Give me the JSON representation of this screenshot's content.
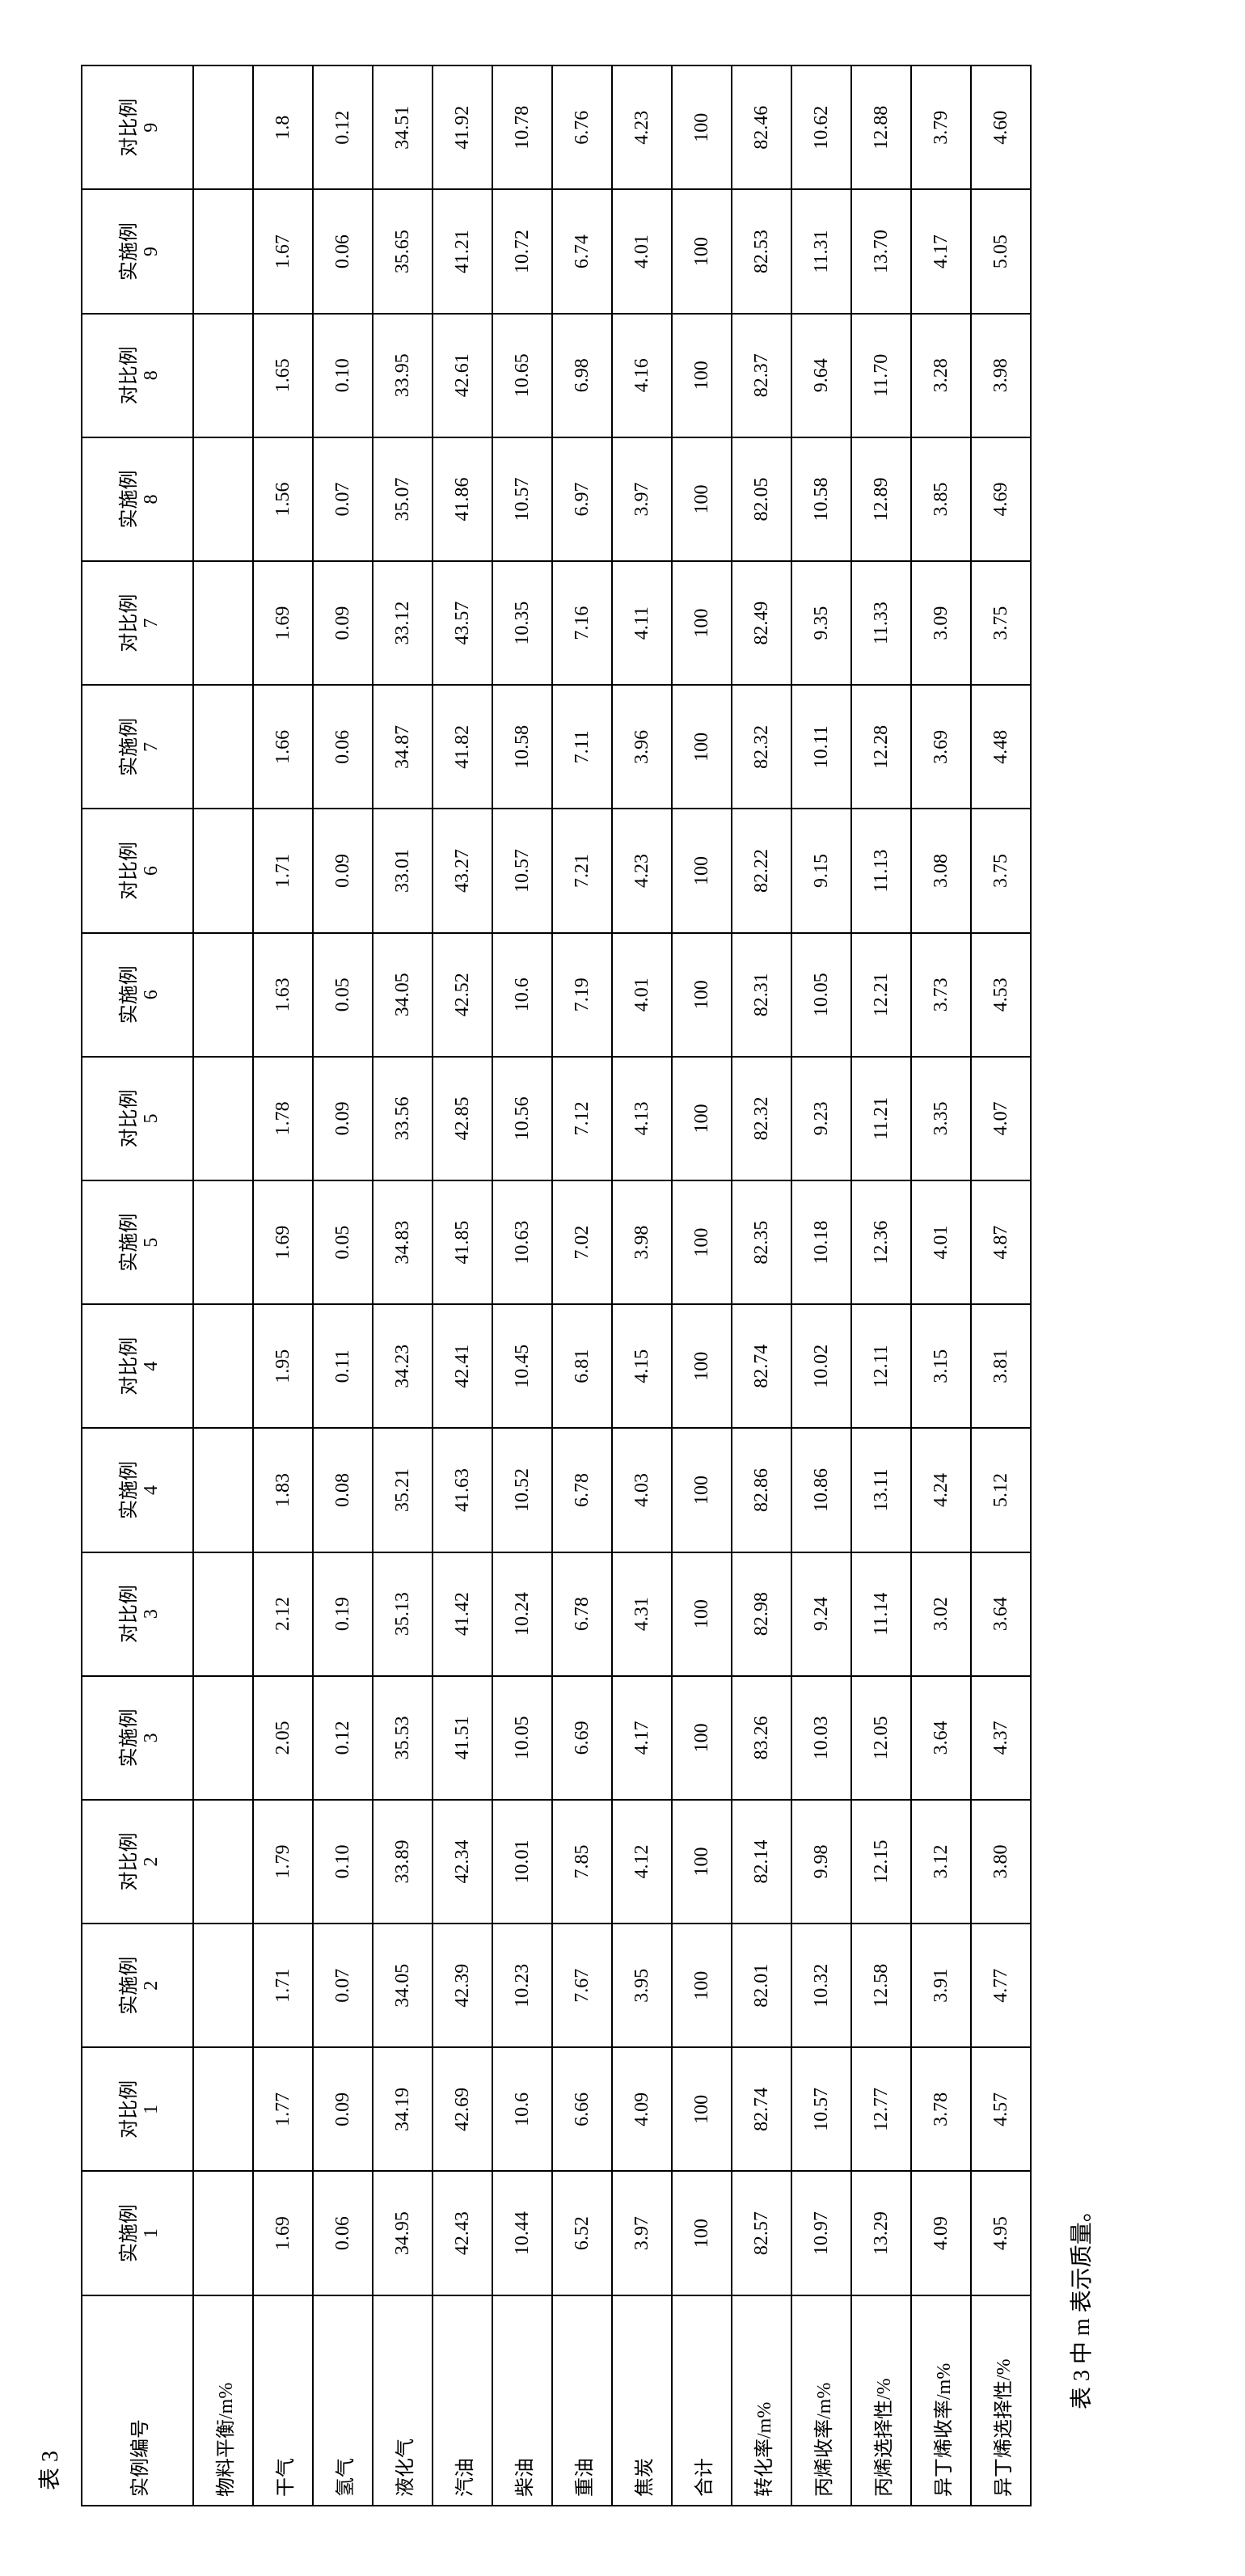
{
  "caption_top": "表 3",
  "caption_bottom": "表 3 中 m 表示质量。",
  "table": {
    "header_label": "实例编号",
    "column_pairs": [
      {
        "shi": "实施例",
        "dui": "对比例",
        "num": "1"
      },
      {
        "shi": "实施例",
        "dui": "对比例",
        "num": "2"
      },
      {
        "shi": "实施例",
        "dui": "对比例",
        "num": "3"
      },
      {
        "shi": "实施例",
        "dui": "对比例",
        "num": "4"
      },
      {
        "shi": "实施例",
        "dui": "对比例",
        "num": "5"
      },
      {
        "shi": "实施例",
        "dui": "对比例",
        "num": "6"
      },
      {
        "shi": "实施例",
        "dui": "对比例",
        "num": "7"
      },
      {
        "shi": "实施例",
        "dui": "对比例",
        "num": "8"
      },
      {
        "shi": "实施例",
        "dui": "对比例",
        "num": "9"
      }
    ],
    "rows": [
      {
        "label": "物料平衡/m%",
        "vals": [
          "",
          "",
          "",
          "",
          "",
          "",
          "",
          "",
          "",
          "",
          "",
          "",
          "",
          "",
          "",
          "",
          "",
          ""
        ]
      },
      {
        "label": "干气",
        "vals": [
          "1.69",
          "1.77",
          "1.71",
          "1.79",
          "2.05",
          "2.12",
          "1.83",
          "1.95",
          "1.69",
          "1.78",
          "1.63",
          "1.71",
          "1.66",
          "1.69",
          "1.56",
          "1.65",
          "1.67",
          "1.8"
        ]
      },
      {
        "label": "氢气",
        "vals": [
          "0.06",
          "0.09",
          "0.07",
          "0.10",
          "0.12",
          "0.19",
          "0.08",
          "0.11",
          "0.05",
          "0.09",
          "0.05",
          "0.09",
          "0.06",
          "0.09",
          "0.07",
          "0.10",
          "0.06",
          "0.12"
        ]
      },
      {
        "label": "液化气",
        "vals": [
          "34.95",
          "34.19",
          "34.05",
          "33.89",
          "35.53",
          "35.13",
          "35.21",
          "34.23",
          "34.83",
          "33.56",
          "34.05",
          "33.01",
          "34.87",
          "33.12",
          "35.07",
          "33.95",
          "35.65",
          "34.51"
        ]
      },
      {
        "label": "汽油",
        "vals": [
          "42.43",
          "42.69",
          "42.39",
          "42.34",
          "41.51",
          "41.42",
          "41.63",
          "42.41",
          "41.85",
          "42.85",
          "42.52",
          "43.27",
          "41.82",
          "43.57",
          "41.86",
          "42.61",
          "41.21",
          "41.92"
        ]
      },
      {
        "label": "柴油",
        "vals": [
          "10.44",
          "10.6",
          "10.23",
          "10.01",
          "10.05",
          "10.24",
          "10.52",
          "10.45",
          "10.63",
          "10.56",
          "10.6",
          "10.57",
          "10.58",
          "10.35",
          "10.57",
          "10.65",
          "10.72",
          "10.78"
        ]
      },
      {
        "label": "重油",
        "vals": [
          "6.52",
          "6.66",
          "7.67",
          "7.85",
          "6.69",
          "6.78",
          "6.78",
          "6.81",
          "7.02",
          "7.12",
          "7.19",
          "7.21",
          "7.11",
          "7.16",
          "6.97",
          "6.98",
          "6.74",
          "6.76"
        ]
      },
      {
        "label": "焦炭",
        "vals": [
          "3.97",
          "4.09",
          "3.95",
          "4.12",
          "4.17",
          "4.31",
          "4.03",
          "4.15",
          "3.98",
          "4.13",
          "4.01",
          "4.23",
          "3.96",
          "4.11",
          "3.97",
          "4.16",
          "4.01",
          "4.23"
        ]
      },
      {
        "label": "合计",
        "vals": [
          "100",
          "100",
          "100",
          "100",
          "100",
          "100",
          "100",
          "100",
          "100",
          "100",
          "100",
          "100",
          "100",
          "100",
          "100",
          "100",
          "100",
          "100"
        ]
      },
      {
        "label": "转化率/m%",
        "vals": [
          "82.57",
          "82.74",
          "82.01",
          "82.14",
          "83.26",
          "82.98",
          "82.86",
          "82.74",
          "82.35",
          "82.32",
          "82.31",
          "82.22",
          "82.32",
          "82.49",
          "82.05",
          "82.37",
          "82.53",
          "82.46"
        ]
      },
      {
        "label": "丙烯收率/m%",
        "vals": [
          "10.97",
          "10.57",
          "10.32",
          "9.98",
          "10.03",
          "9.24",
          "10.86",
          "10.02",
          "10.18",
          "9.23",
          "10.05",
          "9.15",
          "10.11",
          "9.35",
          "10.58",
          "9.64",
          "11.31",
          "10.62"
        ]
      },
      {
        "label": "丙烯选择性/%",
        "vals": [
          "13.29",
          "12.77",
          "12.58",
          "12.15",
          "12.05",
          "11.14",
          "13.11",
          "12.11",
          "12.36",
          "11.21",
          "12.21",
          "11.13",
          "12.28",
          "11.33",
          "12.89",
          "11.70",
          "13.70",
          "12.88"
        ]
      },
      {
        "label": "异丁烯收率/m%",
        "vals": [
          "4.09",
          "3.78",
          "3.91",
          "3.12",
          "3.64",
          "3.02",
          "4.24",
          "3.15",
          "4.01",
          "3.35",
          "3.73",
          "3.08",
          "3.69",
          "3.09",
          "3.85",
          "3.28",
          "4.17",
          "3.79"
        ]
      },
      {
        "label": "异丁烯选择性/%",
        "vals": [
          "4.95",
          "4.57",
          "4.77",
          "3.80",
          "4.37",
          "3.64",
          "5.12",
          "3.81",
          "4.87",
          "4.07",
          "4.53",
          "3.75",
          "4.48",
          "3.75",
          "4.69",
          "3.98",
          "5.05",
          "4.60"
        ]
      }
    ]
  }
}
